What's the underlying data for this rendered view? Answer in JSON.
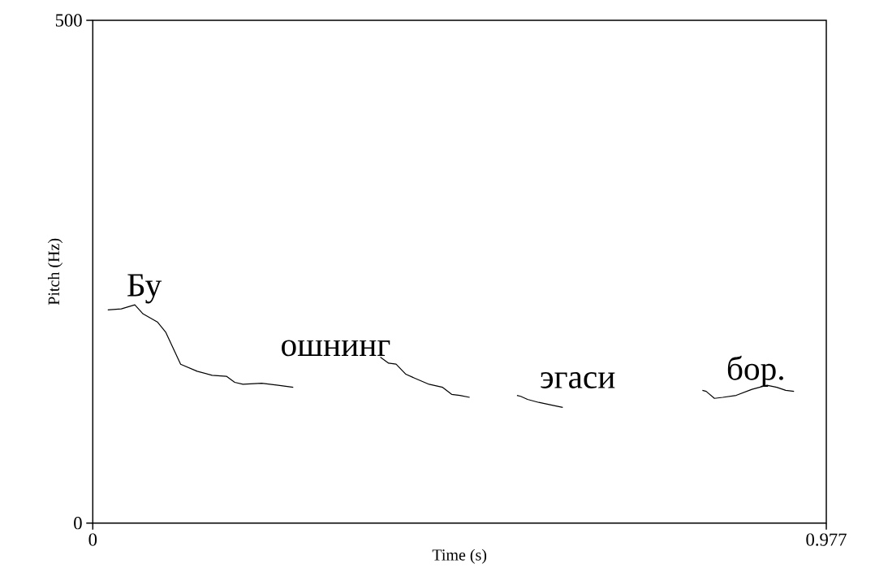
{
  "chart_data": {
    "type": "line",
    "xlabel": "Time (s)",
    "ylabel": "Pitch (Hz)",
    "xlim": [
      0,
      0.977
    ],
    "ylim": [
      0,
      500
    ],
    "xticks": [
      0,
      0.977
    ],
    "yticks": [
      0,
      500
    ],
    "marker": "none",
    "line_style": "solid",
    "series": [
      {
        "color": "#000000",
        "x": [
          0.02,
          0.038,
          0.056,
          0.067,
          0.086,
          0.097,
          0.117,
          0.139,
          0.159,
          0.178,
          0.189,
          0.2,
          0.225,
          0.247,
          0.267
        ],
        "values": [
          212,
          213,
          217,
          208,
          200,
          190,
          158,
          151,
          147,
          146,
          140,
          138,
          139,
          137,
          135
        ]
      },
      {
        "color": "#000000",
        "x": [
          0.383,
          0.394,
          0.404,
          0.417,
          0.429,
          0.448,
          0.466,
          0.478,
          0.489,
          0.502
        ],
        "values": [
          165,
          159,
          158,
          148,
          144,
          138,
          135,
          128,
          127,
          125
        ]
      },
      {
        "color": "#000000",
        "x": [
          0.565,
          0.57,
          0.579,
          0.594,
          0.613,
          0.626
        ],
        "values": [
          127,
          126,
          123,
          120,
          117,
          115
        ]
      },
      {
        "color": "#000000",
        "x": [
          0.812,
          0.817,
          0.828,
          0.839,
          0.857,
          0.878,
          0.898,
          0.911,
          0.923,
          0.934
        ],
        "values": [
          132,
          131,
          124,
          125,
          127,
          133,
          137,
          135,
          132,
          131
        ]
      }
    ],
    "annotations": [
      "Бу",
      "ошнинг",
      "эгаси",
      "бор."
    ]
  }
}
